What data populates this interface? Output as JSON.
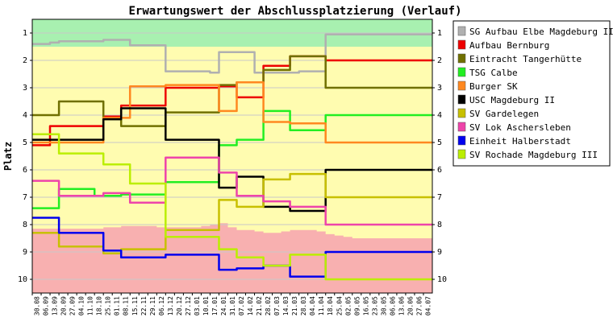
{
  "chart_data": {
    "type": "line",
    "title": "Erwartungswert der Abschlussplatzierung (Verlauf)",
    "ylabel": "Platz",
    "xlabel": "",
    "ylim": [
      10.5,
      0.5
    ],
    "y_ticks": [
      1,
      2,
      3,
      4,
      5,
      6,
      7,
      8,
      9,
      10
    ],
    "legend_position": "right",
    "x": [
      "30.08",
      "06.09",
      "13.09",
      "20.09",
      "27.09",
      "04.10",
      "11.10",
      "18.10",
      "25.10",
      "01.11",
      "08.11",
      "15.11",
      "22.11",
      "29.11",
      "06.12",
      "13.12",
      "20.12",
      "27.12",
      "03.01",
      "10.01",
      "17.01",
      "24.01",
      "31.01",
      "07.02",
      "14.02",
      "21.02",
      "28.02",
      "07.03",
      "14.03",
      "21.03",
      "28.03",
      "04.04",
      "11.04",
      "18.04",
      "25.04",
      "02.05",
      "09.05",
      "16.05",
      "23.05",
      "30.05",
      "06.06",
      "13.06",
      "20.06",
      "27.06",
      "04.07"
    ],
    "bands": {
      "top_green_bottom": 1.5,
      "bottom_red_top": [
        8.15,
        8.15,
        8.15,
        8.15,
        8.15,
        8.15,
        8.15,
        8.15,
        8.1,
        8.1,
        8.05,
        8.05,
        8.05,
        8.05,
        8.1,
        8.1,
        8.1,
        8.1,
        8.1,
        8.05,
        8.0,
        7.95,
        8.1,
        8.2,
        8.2,
        8.25,
        8.3,
        8.3,
        8.25,
        8.2,
        8.2,
        8.2,
        8.25,
        8.35,
        8.4,
        8.45,
        8.5,
        8.5,
        8.5,
        8.5,
        8.5,
        8.5,
        8.5,
        8.5,
        8.5
      ],
      "colors": {
        "green": "#a8f0b0",
        "yellow": "#fffcb0",
        "red": "#f8b0b0"
      }
    },
    "series": [
      {
        "name": "SG Aufbau Elbe Magdeburg III",
        "color": "#b0b0b0",
        "values": [
          1.4,
          1.4,
          1.35,
          1.3,
          1.3,
          1.3,
          1.3,
          1.3,
          1.25,
          1.25,
          1.25,
          1.45,
          1.45,
          1.45,
          1.45,
          2.4,
          2.4,
          2.4,
          2.4,
          2.4,
          2.45,
          1.7,
          1.7,
          1.7,
          1.7,
          2.45,
          2.45,
          2.45,
          2.45,
          2.45,
          2.4,
          2.4,
          2.4,
          1.05,
          1.05,
          1.05,
          1.05,
          1.05,
          1.05,
          1.05,
          1.05,
          1.05,
          1.05,
          1.05,
          1.05
        ]
      },
      {
        "name": "Aufbau Bernburg",
        "color": "#ee0000",
        "values": [
          5.1,
          5.1,
          4.4,
          4.4,
          4.4,
          4.4,
          4.4,
          4.4,
          4.05,
          4.05,
          3.65,
          3.65,
          3.65,
          3.65,
          3.65,
          3.0,
          3.0,
          3.0,
          3.0,
          3.0,
          3.0,
          2.95,
          2.95,
          3.35,
          3.35,
          3.35,
          2.2,
          2.2,
          2.2,
          1.85,
          1.85,
          1.85,
          1.85,
          2.0,
          2.0,
          2.0,
          2.0,
          2.0,
          2.0,
          2.0,
          2.0,
          2.0,
          2.0,
          2.0,
          2.0
        ]
      },
      {
        "name": "Eintracht Tangerhütte",
        "color": "#707000",
        "values": [
          4.0,
          4.0,
          4.0,
          3.5,
          3.5,
          3.5,
          3.5,
          3.5,
          4.15,
          4.15,
          4.4,
          4.4,
          4.4,
          4.4,
          4.4,
          3.9,
          3.9,
          3.9,
          3.9,
          3.9,
          3.9,
          2.9,
          2.9,
          2.8,
          2.8,
          2.8,
          2.35,
          2.35,
          2.35,
          1.85,
          1.85,
          1.85,
          1.85,
          3.0,
          3.0,
          3.0,
          3.0,
          3.0,
          3.0,
          3.0,
          3.0,
          3.0,
          3.0,
          3.0,
          3.0
        ]
      },
      {
        "name": "TSG Calbe",
        "color": "#22ee22",
        "values": [
          7.4,
          7.4,
          7.4,
          6.7,
          6.7,
          6.7,
          6.7,
          6.95,
          6.95,
          6.95,
          6.9,
          6.9,
          6.9,
          6.9,
          6.9,
          6.45,
          6.45,
          6.45,
          6.45,
          6.45,
          6.45,
          5.1,
          5.1,
          4.9,
          4.9,
          4.9,
          3.85,
          3.85,
          3.85,
          4.55,
          4.55,
          4.55,
          4.55,
          4.0,
          4.0,
          4.0,
          4.0,
          4.0,
          4.0,
          4.0,
          4.0,
          4.0,
          4.0,
          4.0,
          4.0
        ]
      },
      {
        "name": "Burger SK",
        "color": "#ff8820",
        "values": [
          5.0,
          5.0,
          5.0,
          5.0,
          5.0,
          5.0,
          5.0,
          5.0,
          4.1,
          4.1,
          4.1,
          2.95,
          2.95,
          2.95,
          2.95,
          2.9,
          2.9,
          2.9,
          2.9,
          2.9,
          2.9,
          3.85,
          3.85,
          2.8,
          2.8,
          2.8,
          4.25,
          4.25,
          4.25,
          4.3,
          4.3,
          4.3,
          4.3,
          5.0,
          5.0,
          5.0,
          5.0,
          5.0,
          5.0,
          5.0,
          5.0,
          5.0,
          5.0,
          5.0,
          5.0
        ]
      },
      {
        "name": "USC Magdeburg II",
        "color": "#000000",
        "values": [
          4.9,
          4.9,
          4.9,
          4.9,
          4.9,
          4.9,
          4.9,
          4.9,
          4.15,
          4.15,
          3.75,
          3.75,
          3.75,
          3.75,
          3.75,
          4.9,
          4.9,
          4.9,
          4.9,
          4.9,
          4.9,
          6.65,
          6.65,
          6.25,
          6.25,
          6.25,
          7.35,
          7.35,
          7.35,
          7.5,
          7.5,
          7.5,
          7.5,
          6.0,
          6.0,
          6.0,
          6.0,
          6.0,
          6.0,
          6.0,
          6.0,
          6.0,
          6.0,
          6.0,
          6.0
        ]
      },
      {
        "name": "SV Gardelegen",
        "color": "#c8c000",
        "values": [
          8.3,
          8.3,
          8.3,
          8.8,
          8.8,
          8.8,
          8.8,
          8.8,
          9.05,
          9.05,
          8.9,
          8.9,
          8.9,
          8.9,
          8.9,
          8.2,
          8.2,
          8.2,
          8.2,
          8.2,
          8.2,
          7.1,
          7.1,
          7.35,
          7.35,
          7.35,
          6.35,
          6.35,
          6.35,
          6.15,
          6.15,
          6.15,
          6.15,
          7.0,
          7.0,
          7.0,
          7.0,
          7.0,
          7.0,
          7.0,
          7.0,
          7.0,
          7.0,
          7.0,
          7.0
        ]
      },
      {
        "name": "SV Lok Aschersleben",
        "color": "#ee44aa",
        "values": [
          6.4,
          6.4,
          6.4,
          6.95,
          6.95,
          6.95,
          6.95,
          6.95,
          6.85,
          6.85,
          6.85,
          7.2,
          7.2,
          7.2,
          7.2,
          5.55,
          5.55,
          5.55,
          5.55,
          5.55,
          5.55,
          6.1,
          6.1,
          6.95,
          6.95,
          6.95,
          7.15,
          7.15,
          7.15,
          7.35,
          7.35,
          7.35,
          7.35,
          8.0,
          8.0,
          8.0,
          8.0,
          8.0,
          8.0,
          8.0,
          8.0,
          8.0,
          8.0,
          8.0,
          8.0
        ]
      },
      {
        "name": "Einheit Halberstadt",
        "color": "#0000ee",
        "values": [
          7.75,
          7.75,
          7.75,
          8.3,
          8.3,
          8.3,
          8.3,
          8.3,
          8.95,
          8.95,
          9.2,
          9.2,
          9.2,
          9.2,
          9.2,
          9.1,
          9.1,
          9.1,
          9.1,
          9.1,
          9.1,
          9.65,
          9.65,
          9.6,
          9.6,
          9.6,
          9.5,
          9.5,
          9.5,
          9.9,
          9.9,
          9.9,
          9.9,
          9.0,
          9.0,
          9.0,
          9.0,
          9.0,
          9.0,
          9.0,
          9.0,
          9.0,
          9.0,
          9.0,
          9.0
        ]
      },
      {
        "name": "SV Rochade Magdeburg III",
        "color": "#bbee00",
        "values": [
          4.7,
          4.7,
          4.7,
          5.4,
          5.4,
          5.4,
          5.4,
          5.4,
          5.8,
          5.8,
          5.8,
          6.5,
          6.5,
          6.5,
          6.5,
          8.45,
          8.45,
          8.45,
          8.45,
          8.45,
          8.45,
          8.9,
          8.9,
          9.2,
          9.2,
          9.2,
          9.5,
          9.5,
          9.5,
          9.1,
          9.1,
          9.1,
          9.1,
          10.0,
          10.0,
          10.0,
          10.0,
          10.0,
          10.0,
          10.0,
          10.0,
          10.0,
          10.0,
          10.0,
          10.0
        ]
      }
    ]
  }
}
